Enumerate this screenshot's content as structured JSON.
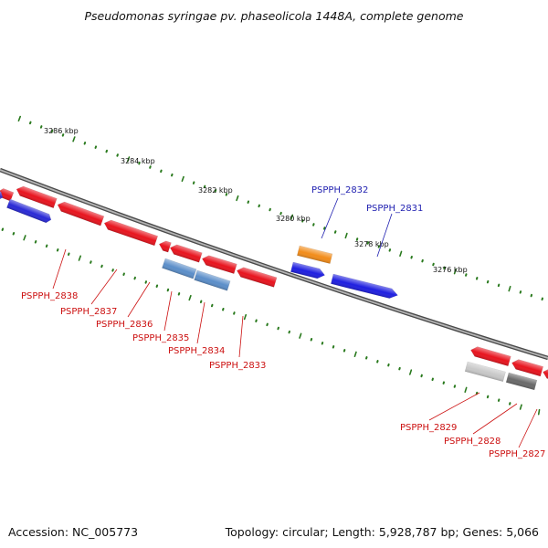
{
  "title": "Pseudomonas syringae pv. phaseolicola 1448A, complete genome",
  "footer": {
    "accession": "Accession: NC_005773",
    "summary": "Topology: circular; Length: 5,928,787 bp; Genes: 5,066"
  },
  "colors": {
    "backbone": "#8a8a8a",
    "tick": "#2a7a1e",
    "forward_label": "#1f1fb0",
    "reverse_label": "#cc1111"
  },
  "scale_labels": [
    "3286 kbp",
    "3284 kbp",
    "3282 kbp",
    "3280 kbp",
    "3278 kbp",
    "3276 kbp"
  ],
  "genes": [
    {
      "name": "",
      "strand": "reverse",
      "color": "#e8141e"
    },
    {
      "name": "",
      "strand": "forward",
      "color": "#2a2ad6"
    },
    {
      "name": "PSPPH_2838",
      "strand": "reverse",
      "color": "#e8141e"
    },
    {
      "name": "PSPPH_2837",
      "strand": "reverse",
      "color": "#e8141e"
    },
    {
      "name": "PSPPH_2836",
      "strand": "reverse",
      "color": "#e8141e"
    },
    {
      "name": "PSPPH_2835",
      "strand": "reverse",
      "color": "#e8141e"
    },
    {
      "name": "PSPPH_2834",
      "strand": "reverse",
      "color": "#e8141e"
    },
    {
      "name": "PSPPH_2833",
      "strand": "reverse",
      "color": "#e8141e"
    },
    {
      "name": "",
      "strand": "reverse",
      "color": "#5b8ec9"
    },
    {
      "name": "",
      "strand": "reverse",
      "color": "#5b8ec9"
    },
    {
      "name": "PSPPH_2832",
      "strand": "forward",
      "color": "#f28c1a"
    },
    {
      "name": "",
      "strand": "forward",
      "color": "#1f1fe0"
    },
    {
      "name": "PSPPH_2831",
      "strand": "forward",
      "color": "#1f1fe0"
    },
    {
      "name": "",
      "strand": "reverse",
      "color": "#e8141e"
    },
    {
      "name": "",
      "strand": "reverse",
      "color": "#e8141e"
    },
    {
      "name": "",
      "strand": "reverse",
      "color": "#e8141e"
    },
    {
      "name": "PSPPH_2829",
      "strand": "reverse",
      "color": "#c8c8c8"
    },
    {
      "name": "PSPPH_2828",
      "strand": "reverse",
      "color": "#6a6a6a"
    },
    {
      "name": "PSPPH_2827",
      "strand": "reverse",
      "color": "#e8141e"
    }
  ]
}
